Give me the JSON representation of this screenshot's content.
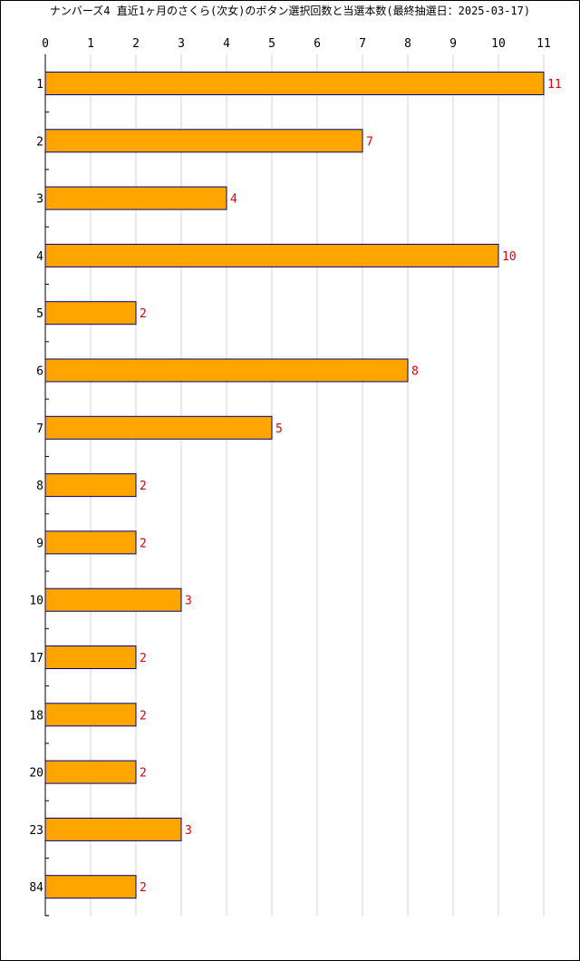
{
  "title": "ナンバーズ4 直近1ヶ月のさくら(次女)のボタン選択回数と当選本数(最終抽選日：2025-03-17)",
  "chart_data": {
    "type": "bar",
    "orientation": "horizontal",
    "categories": [
      "1",
      "2",
      "3",
      "4",
      "5",
      "6",
      "7",
      "8",
      "9",
      "10",
      "17",
      "18",
      "20",
      "23",
      "84"
    ],
    "values": [
      11,
      7,
      4,
      10,
      2,
      8,
      5,
      2,
      2,
      3,
      2,
      2,
      2,
      3,
      2
    ],
    "xlim": [
      0,
      11
    ],
    "xticks": [
      0,
      1,
      2,
      3,
      4,
      5,
      6,
      7,
      8,
      9,
      10,
      11
    ],
    "grid": true,
    "bar_color": "#FFA500",
    "bar_edge_color": "#000080",
    "value_label_color": "#E00000",
    "grid_color": "#D3D3D3"
  }
}
